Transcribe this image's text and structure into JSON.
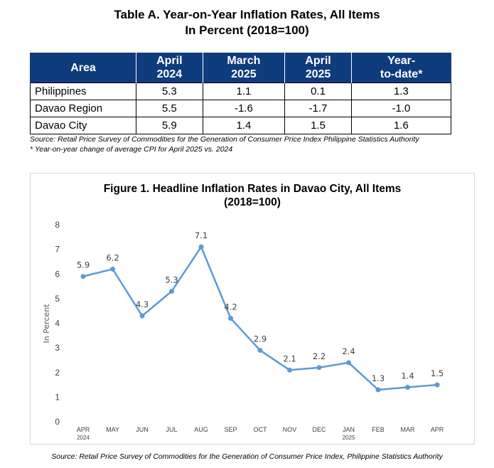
{
  "table": {
    "title_line1": "Table A. Year-on-Year Inflation Rates, All Items",
    "title_line2": "In Percent (2018=100)",
    "headers": [
      {
        "line1": "Area",
        "line2": ""
      },
      {
        "line1": "April",
        "line2": "2024"
      },
      {
        "line1": "March",
        "line2": "2025"
      },
      {
        "line1": "April",
        "line2": "2025"
      },
      {
        "line1": "Year-",
        "line2": "to-date*"
      }
    ],
    "rows": [
      {
        "area": "Philippines",
        "apr2024": "5.3",
        "mar2025": "1.1",
        "apr2025": "0.1",
        "ytd": "1.3"
      },
      {
        "area": "Davao Region",
        "apr2024": "5.5",
        "mar2025": "-1.6",
        "apr2025": "-1.7",
        "ytd": "-1.0"
      },
      {
        "area": "Davao City",
        "apr2024": "5.9",
        "mar2025": "1.4",
        "apr2025": "1.5",
        "ytd": "1.6"
      }
    ],
    "source": "Source: Retail Price Survey of Commodities for the Generation of Consumer Price Index Philippine Statistics Authority",
    "footnote": "* Year-on-year change of average CPI for April 2025 vs. 2024"
  },
  "figure": {
    "source": "Source: Retail Price Survey of Commodities for the Generation of Consumer Price Index, Philippine Statistics Authority"
  },
  "chart_data": {
    "type": "line",
    "title": "Figure 1. Headline Inflation Rates in Davao City, All Items",
    "subtitle": "(2018=100)",
    "ylabel": "In Percent",
    "xlabel": "",
    "ylim": [
      0,
      8
    ],
    "yticks": [
      "0",
      "1",
      "2",
      "3",
      "4",
      "5",
      "6",
      "7",
      "8"
    ],
    "categories": [
      "APR",
      "MAY",
      "JUN",
      "JUL",
      "AUG",
      "SEP",
      "OCT",
      "NOV",
      "DEC",
      "JAN",
      "FEB",
      "MAR",
      "APR"
    ],
    "category_sublabels": [
      "2024",
      "",
      "",
      "",
      "",
      "",
      "",
      "",
      "",
      "2025",
      "",
      "",
      ""
    ],
    "values": [
      5.9,
      6.2,
      4.3,
      5.3,
      7.1,
      4.2,
      2.9,
      2.1,
      2.2,
      2.4,
      1.3,
      1.4,
      1.5
    ],
    "value_labels": [
      "5.9",
      "6.2",
      "4.3",
      "5.3",
      "7.1",
      "4.2",
      "2.9",
      "2.1",
      "2.2",
      "2.4",
      "1.3",
      "1.4",
      "1.5"
    ],
    "line_color": "#5b9bd5",
    "grid": false,
    "legend": "none"
  }
}
